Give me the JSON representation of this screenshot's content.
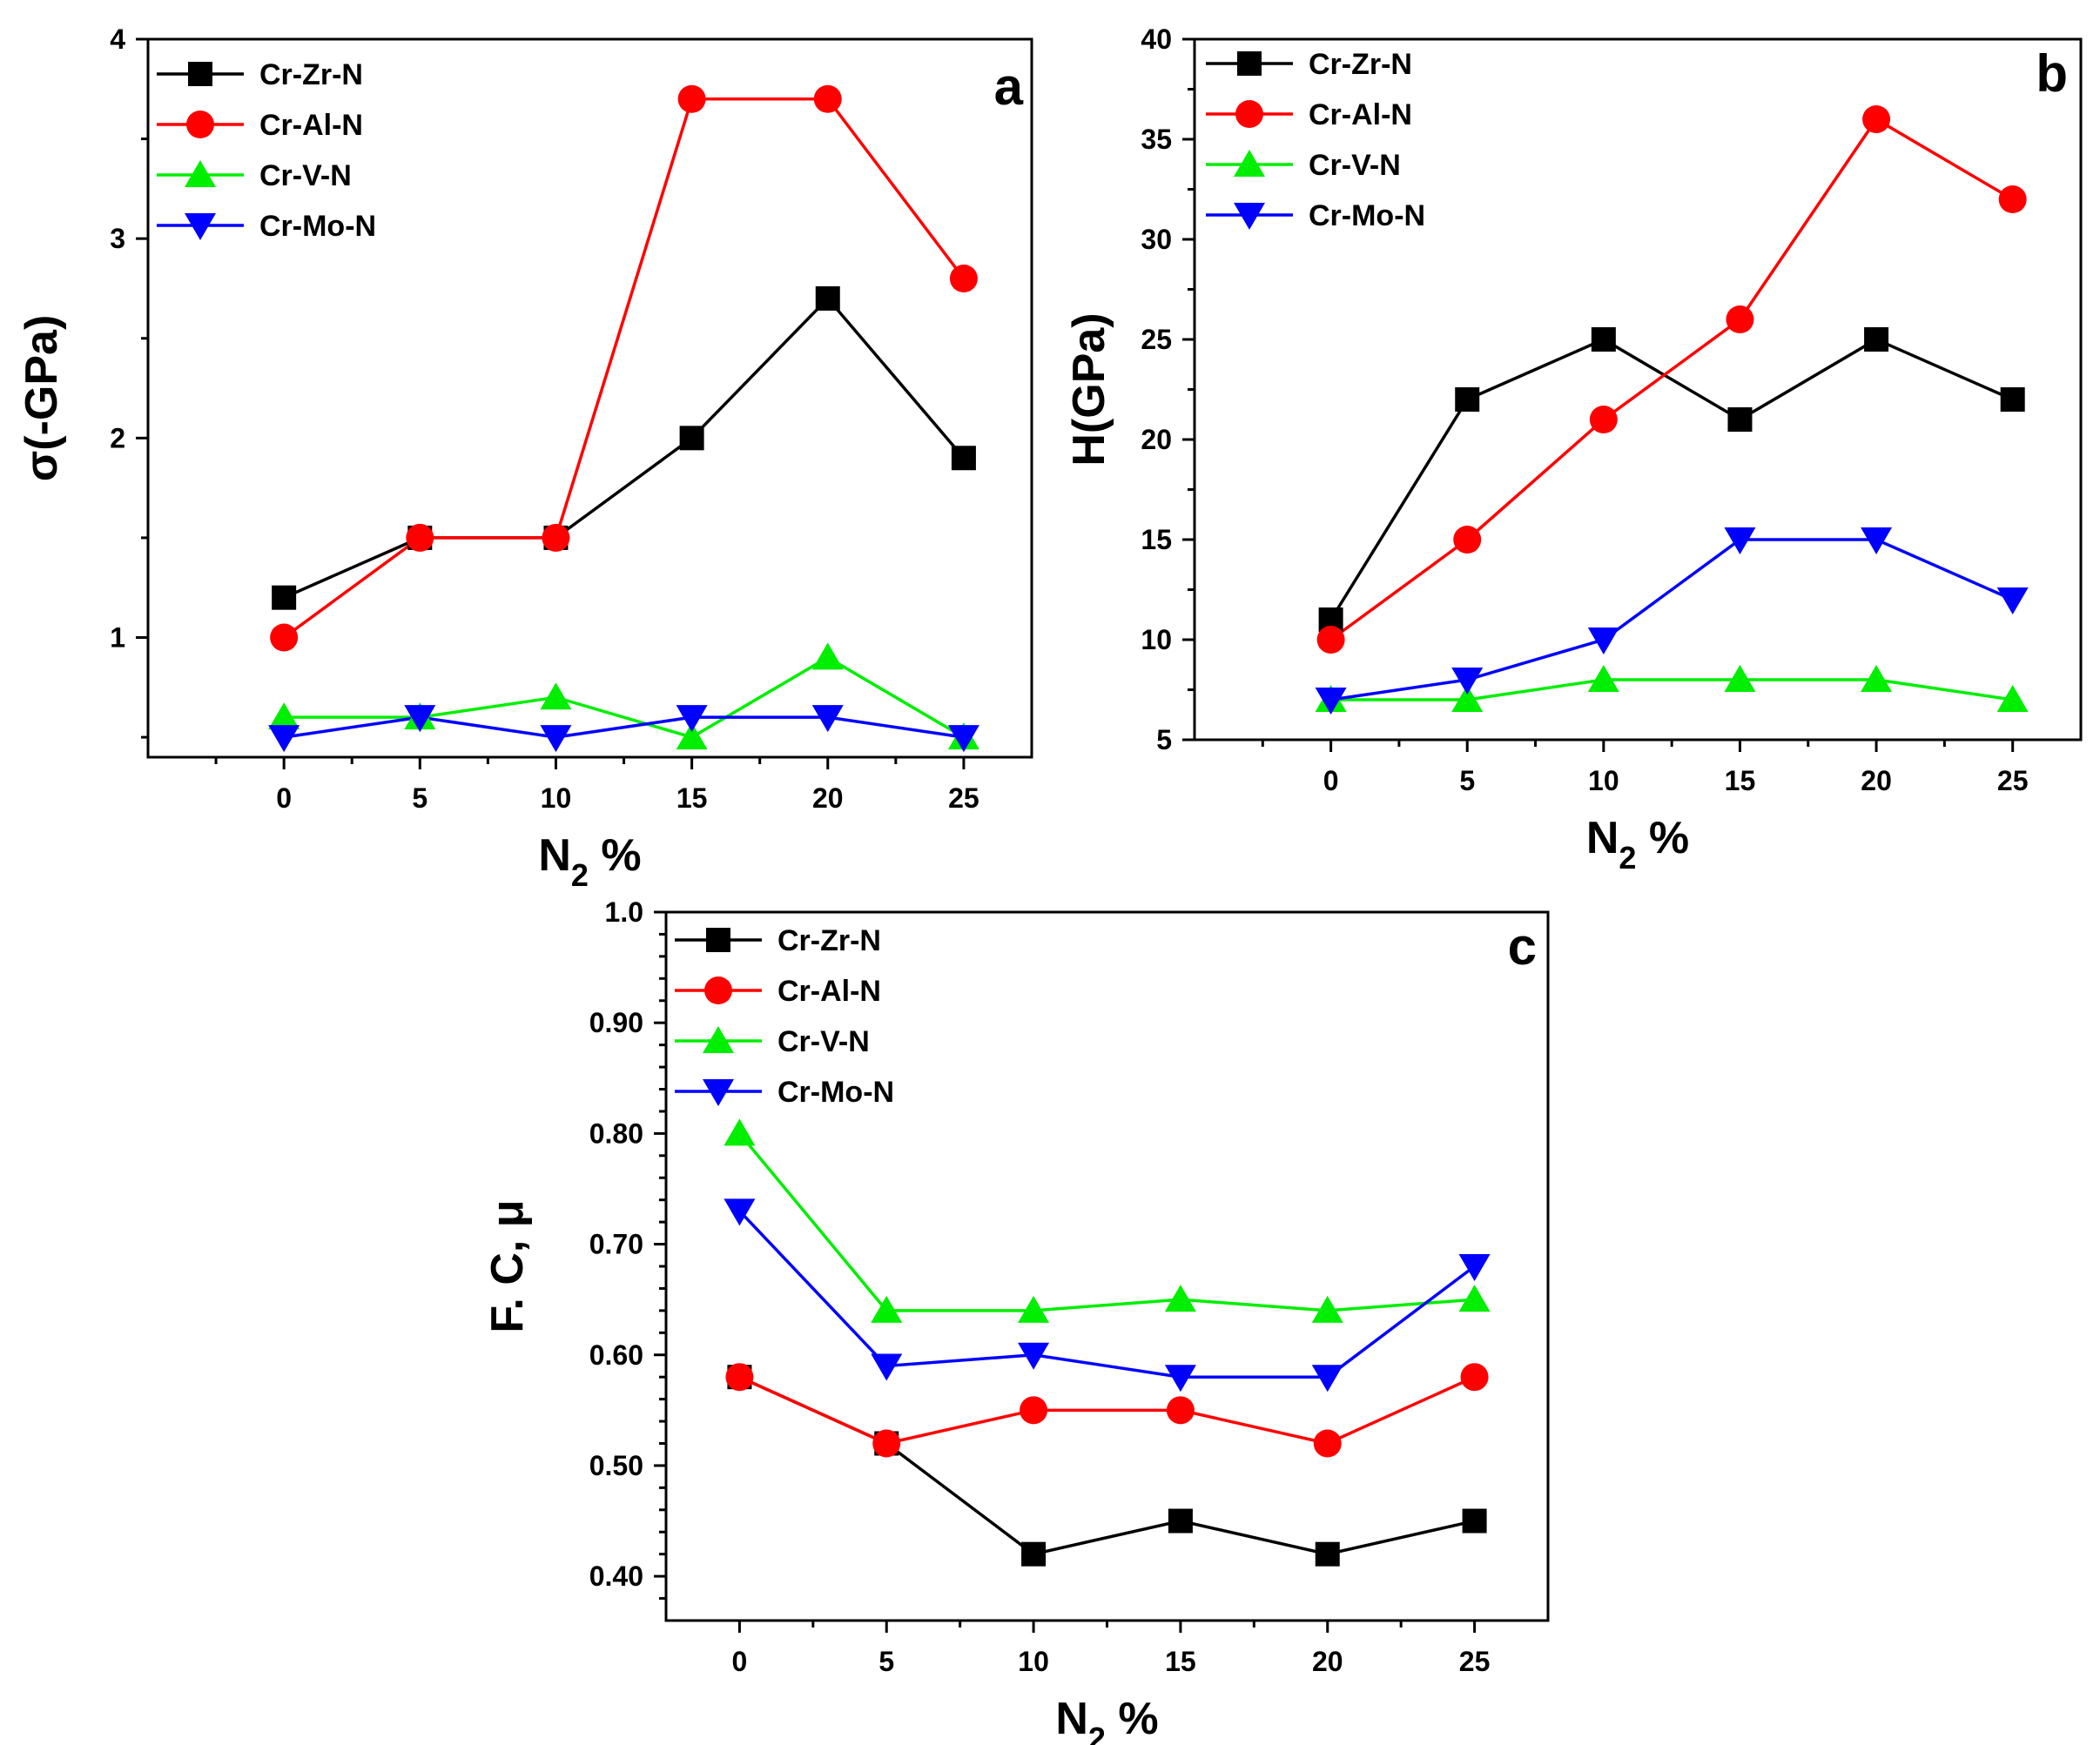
{
  "figure": {
    "marker_map": {
      "square": "Cr-Zr-N",
      "circle": "Cr-Al-N",
      "triangle-up": "Cr-V-N",
      "triangle-down": "Cr-Mo-N"
    }
  },
  "chart_data": [
    {
      "panel": "a",
      "type": "line",
      "title": "",
      "xlabel": "N",
      "xlabel_sub": "2",
      "xlabel_suffix": " %",
      "ylabel": "σ(-GPa)",
      "xlim": [
        -5,
        27.5
      ],
      "ylim": [
        0.4,
        4
      ],
      "x": [
        0,
        5,
        10,
        15,
        20,
        25
      ],
      "xticks": [
        "0",
        "5",
        "10",
        "15",
        "20",
        "25"
      ],
      "yticks": [
        {
          "v": 1,
          "label": "1"
        },
        {
          "v": 2,
          "label": "2"
        },
        {
          "v": 3,
          "label": "3"
        },
        {
          "v": 4,
          "label": "4"
        }
      ],
      "legend_position": "top-left",
      "series": [
        {
          "name": "Cr-Zr-N",
          "color": "#000000",
          "marker": "square",
          "values": [
            1.2,
            1.5,
            1.5,
            2.0,
            2.7,
            1.9
          ]
        },
        {
          "name": "Cr-Al-N",
          "color": "#ff0000",
          "marker": "circle",
          "values": [
            1.0,
            1.5,
            1.5,
            3.7,
            3.7,
            2.8
          ]
        },
        {
          "name": "Cr-V-N",
          "color": "#00ee00",
          "marker": "triangle-up",
          "values": [
            0.6,
            0.6,
            0.7,
            0.5,
            0.9,
            0.5
          ]
        },
        {
          "name": "Cr-Mo-N",
          "color": "#0000ff",
          "marker": "triangle-down",
          "values": [
            0.5,
            0.6,
            0.5,
            0.6,
            0.6,
            0.5
          ]
        }
      ]
    },
    {
      "panel": "b",
      "type": "line",
      "title": "",
      "xlabel": "N",
      "xlabel_sub": "2",
      "xlabel_suffix": " %",
      "ylabel": "H(GPa)",
      "xlim": [
        -5,
        27.5
      ],
      "ylim": [
        5,
        40
      ],
      "x": [
        0,
        5,
        10,
        15,
        20,
        25
      ],
      "xticks": [
        "0",
        "5",
        "10",
        "15",
        "20",
        "25"
      ],
      "yticks": [
        {
          "v": 5,
          "label": "5"
        },
        {
          "v": 10,
          "label": "10"
        },
        {
          "v": 15,
          "label": "15"
        },
        {
          "v": 20,
          "label": "20"
        },
        {
          "v": 25,
          "label": "25"
        },
        {
          "v": 30,
          "label": "30"
        },
        {
          "v": 35,
          "label": "35"
        },
        {
          "v": 40,
          "label": "40"
        }
      ],
      "legend_position": "top-left",
      "series": [
        {
          "name": "Cr-Zr-N",
          "color": "#000000",
          "marker": "square",
          "values": [
            11,
            22,
            25,
            21,
            25,
            22
          ]
        },
        {
          "name": "Cr-Al-N",
          "color": "#ff0000",
          "marker": "circle",
          "values": [
            10,
            15,
            21,
            26,
            36,
            32
          ]
        },
        {
          "name": "Cr-V-N",
          "color": "#00ee00",
          "marker": "triangle-up",
          "values": [
            7,
            7,
            8,
            8,
            8,
            7
          ]
        },
        {
          "name": "Cr-Mo-N",
          "color": "#0000ff",
          "marker": "triangle-down",
          "values": [
            7,
            8,
            10,
            15,
            15,
            12
          ]
        }
      ]
    },
    {
      "panel": "c",
      "type": "line",
      "title": "",
      "xlabel": "N",
      "xlabel_sub": "2",
      "xlabel_suffix": " %",
      "ylabel": "F. C, μ",
      "xlim": [
        -2.5,
        27.5
      ],
      "ylim": [
        0.36,
        1.0
      ],
      "x": [
        0,
        5,
        10,
        15,
        20,
        25
      ],
      "xticks": [
        "0",
        "5",
        "10",
        "15",
        "20",
        "25"
      ],
      "yticks": [
        {
          "v": 0.4,
          "label": "0.40"
        },
        {
          "v": 0.5,
          "label": "0.50"
        },
        {
          "v": 0.6,
          "label": "0.60"
        },
        {
          "v": 0.7,
          "label": "0.70"
        },
        {
          "v": 0.8,
          "label": "0.80"
        },
        {
          "v": 0.9,
          "label": "0.90"
        },
        {
          "v": 1.0,
          "label": "1.0"
        }
      ],
      "legend_position": "top-left",
      "series": [
        {
          "name": "Cr-Zr-N",
          "color": "#000000",
          "marker": "square",
          "values": [
            0.58,
            0.52,
            0.42,
            0.45,
            0.42,
            0.45
          ]
        },
        {
          "name": "Cr-Al-N",
          "color": "#ff0000",
          "marker": "circle",
          "values": [
            0.58,
            0.52,
            0.55,
            0.55,
            0.52,
            0.58
          ]
        },
        {
          "name": "Cr-V-N",
          "color": "#00ee00",
          "marker": "triangle-up",
          "values": [
            0.8,
            0.64,
            0.64,
            0.65,
            0.64,
            0.65
          ]
        },
        {
          "name": "Cr-Mo-N",
          "color": "#0000ff",
          "marker": "triangle-down",
          "values": [
            0.73,
            0.59,
            0.6,
            0.58,
            0.58,
            0.68
          ]
        }
      ]
    }
  ]
}
